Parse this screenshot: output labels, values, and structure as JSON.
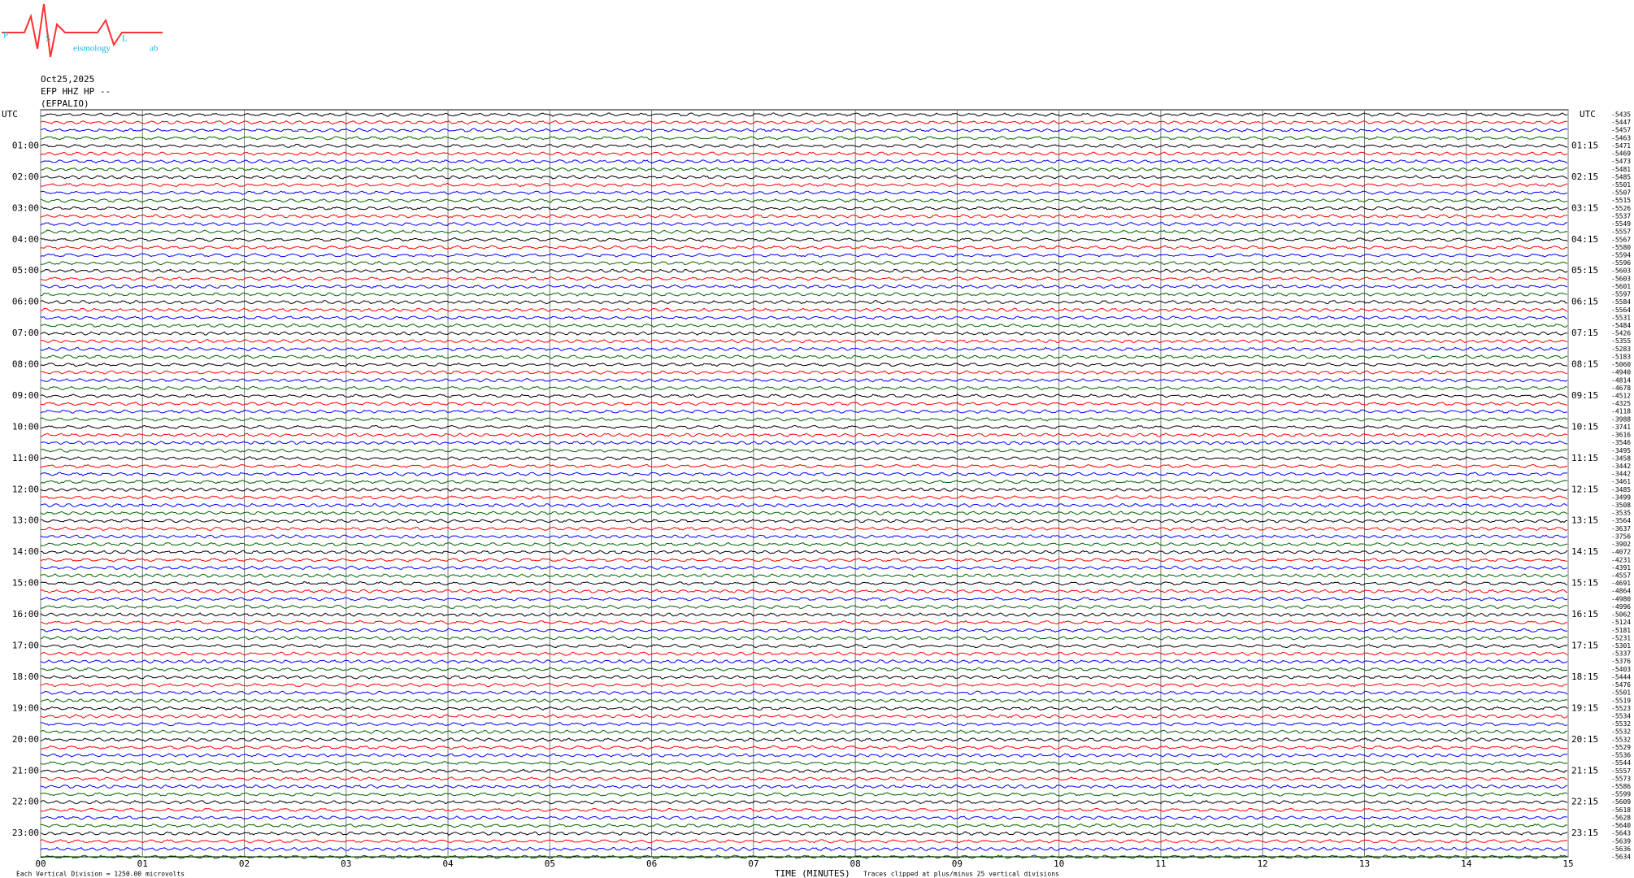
{
  "chart_data": {
    "type": "helicorder",
    "logo": {
      "letters": [
        "P",
        "S",
        "L"
      ],
      "words": [
        "eismology",
        "ab"
      ]
    },
    "date": "Oct25,2025",
    "channel": "EFP HHZ HP --",
    "station": "(EFPALIO)",
    "left_labels": [
      "UTC",
      "01:00",
      "02:00",
      "03:00",
      "04:00",
      "05:00",
      "06:00",
      "07:00",
      "08:00",
      "09:00",
      "10:00",
      "11:00",
      "12:00",
      "13:00",
      "14:00",
      "15:00",
      "16:00",
      "17:00",
      "18:00",
      "19:00",
      "20:00",
      "21:00",
      "22:00",
      "23:00"
    ],
    "right_labels": [
      "UTC",
      "01:15",
      "02:15",
      "03:15",
      "04:15",
      "05:15",
      "06:15",
      "07:15",
      "08:15",
      "09:15",
      "10:15",
      "11:15",
      "12:15",
      "13:15",
      "14:15",
      "15:15",
      "16:15",
      "17:15",
      "18:15",
      "19:15",
      "20:15",
      "21:15",
      "22:15",
      "23:15"
    ],
    "offsets": [
      -5435,
      -5447,
      -5457,
      -5463,
      -5471,
      -5469,
      -5473,
      -5481,
      -5485,
      -5501,
      -5507,
      -5515,
      -5526,
      -5537,
      -5549,
      -5557,
      -5567,
      -5580,
      -5594,
      -5596,
      -5603,
      -5603,
      -5601,
      -5597,
      -5584,
      -5564,
      -5531,
      -5484,
      -5426,
      -5355,
      -5283,
      -5183,
      -5060,
      -4940,
      -4814,
      -4678,
      -4512,
      -4325,
      -4118,
      -3988,
      -3741,
      -3616,
      -3546,
      -3495,
      -3458,
      -3442,
      -3442,
      -3461,
      -3485,
      -3499,
      -3508,
      -3535,
      -3564,
      -3637,
      -3756,
      -3902,
      -4072,
      -4231,
      -4391,
      -4557,
      -4691,
      -4864,
      -4980,
      -4996,
      -5062,
      -5124,
      -5181,
      -5231,
      -5301,
      -5337,
      -5376,
      -5403,
      -5444,
      -5476,
      -5501,
      -5519,
      -5523,
      -5534,
      -5532,
      -5532,
      -5532,
      -5529,
      -5536,
      -5544,
      -5557,
      -5573,
      -5586,
      -5599,
      -5609,
      -5618,
      -5628,
      -5640,
      -5643,
      -5639,
      -5636,
      -5634
    ],
    "trace_colors": [
      "#000000",
      "#ff0000",
      "#0000ff",
      "#006400"
    ],
    "xlim": [
      0,
      15
    ],
    "xticks": [
      {
        "value": 0,
        "label": "00"
      },
      {
        "value": 1,
        "label": "01"
      },
      {
        "value": 2,
        "label": "02"
      },
      {
        "value": 3,
        "label": "03"
      },
      {
        "value": 4,
        "label": "04"
      },
      {
        "value": 5,
        "label": "05"
      },
      {
        "value": 6,
        "label": "06"
      },
      {
        "value": 7,
        "label": "07"
      },
      {
        "value": 8,
        "label": "08"
      },
      {
        "value": 9,
        "label": "09"
      },
      10,
      11,
      12,
      13,
      14,
      15
    ],
    "xlabel": "TIME (MINUTES)",
    "note_left": "Each Vertical Division = 1250.00 microvolts",
    "note_right": "Traces clipped at plus/minus 25 vertical divisions",
    "grid": true
  }
}
